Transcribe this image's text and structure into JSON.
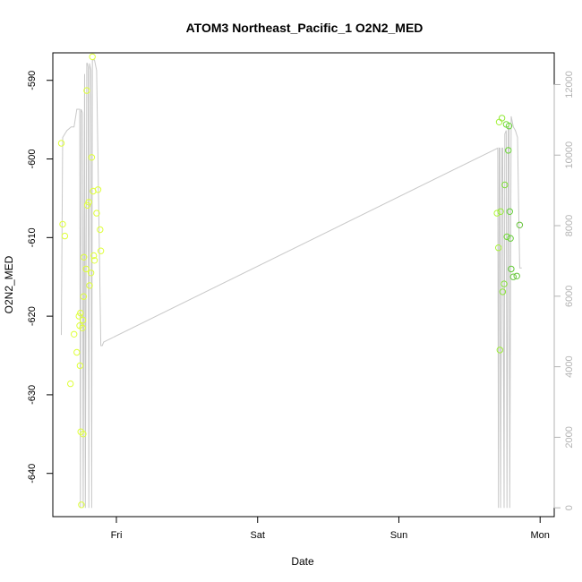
{
  "chart_data": {
    "type": "scatter",
    "title": "ATOM3 Northeast_Pacific_1 O2N2_MED",
    "xlabel": "Date",
    "ylabel": "O2N2_MED",
    "x_ticks": [
      "Fri",
      "Sat",
      "Sun",
      "Mon"
    ],
    "x_tick_days": [
      1,
      2,
      3,
      4
    ],
    "x_unit": "days (Thu 00:00 = 0)",
    "xlim": [
      0.55,
      4.1
    ],
    "ylim": [
      -645.5,
      -586.5
    ],
    "y_ticks": [
      -640,
      -630,
      -620,
      -610,
      -600,
      -590
    ],
    "y2_label": "",
    "y2lim": [
      -250,
      12900
    ],
    "y2_ticks": [
      0,
      2000,
      4000,
      6000,
      8000,
      10000,
      12000
    ],
    "grid": false,
    "legend": "none",
    "colors": {
      "points_start": "#dfff3a",
      "points_end": "#66ee33",
      "line": "#c8c8c8",
      "axis": "#000000",
      "axis_right": "#b3b3b3"
    },
    "series": [
      {
        "kind": "points",
        "x": [
          0.61,
          0.62,
          0.635,
          0.675,
          0.7,
          0.72,
          0.735,
          0.74,
          0.743,
          0.745,
          0.748,
          0.752,
          0.76,
          0.763,
          0.765,
          0.768,
          0.77,
          0.785,
          0.79,
          0.795,
          0.805,
          0.81,
          0.82,
          0.825,
          0.83,
          0.835,
          0.84,
          0.845,
          0.86,
          0.87,
          0.885,
          0.89,
          3.695,
          3.705,
          3.71,
          3.715,
          3.72,
          3.73,
          3.735,
          3.745,
          3.75,
          3.76,
          3.765,
          3.775,
          3.78,
          3.785,
          3.79,
          3.795,
          3.81,
          3.835,
          3.855
        ],
        "y": [
          -598.0,
          -608.3,
          -609.8,
          -628.6,
          -622.3,
          -624.6,
          -620.0,
          -621.2,
          -626.3,
          -619.6,
          -634.7,
          -644.0,
          -621.5,
          -620.5,
          -635.0,
          -617.5,
          -612.5,
          -614.0,
          -591.3,
          -605.9,
          -605.5,
          -616.1,
          -614.5,
          -599.8,
          -587.0,
          -604.1,
          -612.3,
          -612.9,
          -606.9,
          -603.9,
          -609.0,
          -611.7,
          -606.9,
          -611.3,
          -595.3,
          -624.3,
          -606.7,
          -594.8,
          -616.9,
          -615.9,
          -603.3,
          -595.6,
          -609.9,
          -598.9,
          -595.8,
          -606.7,
          -610.1,
          -614.0,
          -615.0,
          -614.9,
          -608.4
        ],
        "stroke_colors": [
          "#dfff3a",
          "#dfff3a",
          "#dfff3a",
          "#dfff3a",
          "#dfff3a",
          "#dfff3a",
          "#dfff3a",
          "#dfff3a",
          "#dfff3a",
          "#dfff3a",
          "#dfff3a",
          "#dfff3a",
          "#dfff3a",
          "#dfff3a",
          "#dfff3a",
          "#dfff3a",
          "#dfff3a",
          "#dfff3a",
          "#dfff3a",
          "#dfff3a",
          "#dfff3a",
          "#dfff3a",
          "#dfff3a",
          "#dfff3a",
          "#dfff3a",
          "#dfff3a",
          "#dfff3a",
          "#dfff3a",
          "#dfff3a",
          "#dfff3a",
          "#dfff3a",
          "#dfff3a",
          "#b0f83a",
          "#aaf53a",
          "#a4f23a",
          "#9eef3a",
          "#98ec3a",
          "#92e93a",
          "#8ce63a",
          "#86e33a",
          "#80e03a",
          "#7add3a",
          "#74da3a",
          "#6ed73a",
          "#68d43a",
          "#66d13a",
          "#66ce3a",
          "#66cb3a",
          "#66c83a",
          "#66c53a",
          "#66c23a"
        ]
      },
      {
        "kind": "line",
        "axis": "right",
        "x": [
          0.61,
          0.62,
          0.65,
          0.68,
          0.7,
          0.72,
          0.74,
          0.745,
          0.75,
          0.76,
          0.765,
          0.775,
          0.78,
          0.79,
          0.795,
          0.8,
          0.805,
          0.81,
          0.82,
          0.825,
          0.83,
          0.845,
          0.86,
          0.89,
          0.9,
          0.91,
          3.7,
          3.705,
          3.71,
          3.715,
          3.72,
          3.73,
          3.735,
          3.745,
          3.75,
          3.76,
          3.765,
          3.775,
          3.78,
          3.785,
          3.795,
          3.81,
          3.825,
          3.84,
          3.855,
          3.86,
          3.87
        ],
        "y": [
          4900,
          10500,
          10700,
          10800,
          10800,
          11300,
          11300,
          0,
          11300,
          11200,
          0,
          12300,
          0,
          12600,
          12600,
          12500,
          0,
          12600,
          12400,
          0,
          12700,
          12700,
          12400,
          4600,
          4600,
          4700,
          10200,
          0,
          10200,
          10200,
          0,
          10200,
          10200,
          0,
          10600,
          10700,
          0,
          10800,
          10800,
          0,
          11100,
          10800,
          10700,
          10500,
          6800,
          6800,
          6800
        ]
      }
    ]
  }
}
